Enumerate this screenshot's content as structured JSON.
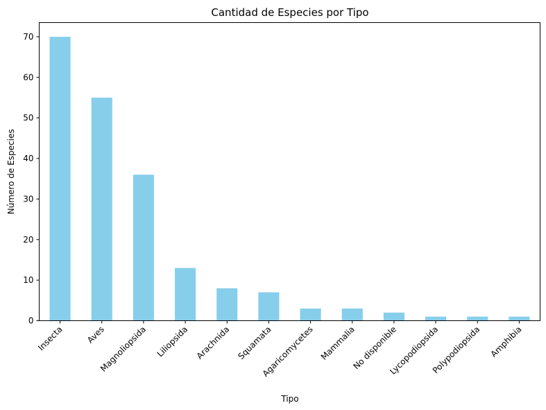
{
  "chart_data": {
    "type": "bar",
    "title": "Cantidad de Especies por Tipo",
    "xlabel": "Tipo",
    "ylabel": "Número de Especies",
    "categories": [
      "Insecta",
      "Aves",
      "Magnoliopsida",
      "Liliopsida",
      "Arachnida",
      "Squamata",
      "Agaricomycetes",
      "Mammalia",
      "No disponible",
      "Lycopodiopsida",
      "Polypodiopsida",
      "Amphibia"
    ],
    "values": [
      70,
      55,
      36,
      13,
      8,
      7,
      3,
      3,
      2,
      1,
      1,
      1
    ],
    "ylim": [
      0,
      73.5
    ],
    "yticks": [
      0,
      10,
      20,
      30,
      40,
      50,
      60,
      70
    ],
    "bar_color": "#87ceeb",
    "grid": false,
    "legend": false
  }
}
